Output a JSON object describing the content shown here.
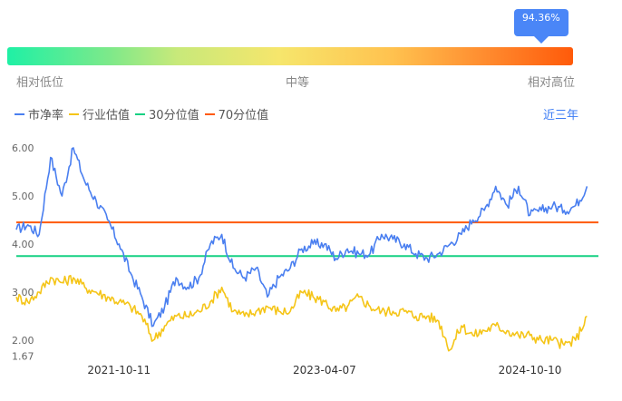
{
  "indicator": {
    "tooltip": "94.36%",
    "percentile": 0.9436,
    "labels": {
      "low": "相对低位",
      "mid": "中等",
      "high": "相对高位"
    }
  },
  "legend": [
    {
      "name": "市净率",
      "color": "#4a7ff0"
    },
    {
      "name": "行业估值",
      "color": "#f5c518"
    },
    {
      "name": "30分位值",
      "color": "#16d183"
    },
    {
      "name": "70分位值",
      "color": "#ff5a0a"
    }
  ],
  "period": "近三年",
  "chart_data": {
    "type": "line",
    "y_ticks": [
      "6.00",
      "5.00",
      "4.00",
      "3.00",
      "2.00",
      "1.67"
    ],
    "x_ticks": [
      "2021-10-11",
      "2023-04-07",
      "2024-10-10"
    ],
    "ylim": [
      1.67,
      6.2
    ],
    "x_range": [
      "2021-01",
      "2025-07"
    ],
    "series": [
      {
        "name": "市净率",
        "color": "#4a7ff0",
        "points": [
          [
            "2021-01",
            4.3
          ],
          [
            "2021-02",
            4.4
          ],
          [
            "2021-03",
            4.2
          ],
          [
            "2021-04",
            5.8
          ],
          [
            "2021-05",
            5.0
          ],
          [
            "2021-06",
            6.0
          ],
          [
            "2021-07",
            5.3
          ],
          [
            "2021-08",
            4.9
          ],
          [
            "2021-09",
            4.5
          ],
          [
            "2021-10",
            4.0
          ],
          [
            "2021-11",
            3.4
          ],
          [
            "2021-12",
            2.9
          ],
          [
            "2022-01",
            2.3
          ],
          [
            "2022-02",
            2.7
          ],
          [
            "2022-03",
            3.3
          ],
          [
            "2022-04",
            3.1
          ],
          [
            "2022-05",
            3.3
          ],
          [
            "2022-06",
            4.0
          ],
          [
            "2022-07",
            4.2
          ],
          [
            "2022-08",
            3.5
          ],
          [
            "2022-09",
            3.3
          ],
          [
            "2022-10",
            3.5
          ],
          [
            "2022-11",
            2.9
          ],
          [
            "2022-12",
            3.3
          ],
          [
            "2023-01",
            3.5
          ],
          [
            "2023-02",
            3.9
          ],
          [
            "2023-03",
            4.0
          ],
          [
            "2023-04",
            4.0
          ],
          [
            "2023-05",
            3.7
          ],
          [
            "2023-06",
            3.9
          ],
          [
            "2023-07",
            3.8
          ],
          [
            "2023-08",
            3.8
          ],
          [
            "2023-09",
            4.2
          ],
          [
            "2023-10",
            4.1
          ],
          [
            "2023-11",
            4.0
          ],
          [
            "2023-12",
            3.8
          ],
          [
            "2024-01",
            3.7
          ],
          [
            "2024-02",
            3.8
          ],
          [
            "2024-03",
            4.0
          ],
          [
            "2024-04",
            4.2
          ],
          [
            "2024-05",
            4.5
          ],
          [
            "2024-06",
            4.7
          ],
          [
            "2024-07",
            5.2
          ],
          [
            "2024-08",
            4.8
          ],
          [
            "2024-09",
            5.2
          ],
          [
            "2024-10",
            4.6
          ],
          [
            "2024-11",
            4.7
          ],
          [
            "2024-12",
            4.8
          ],
          [
            "2025-01",
            4.7
          ],
          [
            "2025-02",
            4.8
          ],
          [
            "2025-03",
            5.2
          ]
        ]
      },
      {
        "name": "行业估值",
        "color": "#f5c518",
        "points": [
          [
            "2021-01",
            2.9
          ],
          [
            "2021-02",
            2.8
          ],
          [
            "2021-03",
            3.0
          ],
          [
            "2021-04",
            3.3
          ],
          [
            "2021-05",
            3.2
          ],
          [
            "2021-06",
            3.3
          ],
          [
            "2021-07",
            3.1
          ],
          [
            "2021-08",
            3.0
          ],
          [
            "2021-09",
            2.9
          ],
          [
            "2021-10",
            2.8
          ],
          [
            "2021-11",
            2.7
          ],
          [
            "2021-12",
            2.5
          ],
          [
            "2022-01",
            2.0
          ],
          [
            "2022-02",
            2.3
          ],
          [
            "2022-03",
            2.5
          ],
          [
            "2022-04",
            2.5
          ],
          [
            "2022-05",
            2.6
          ],
          [
            "2022-06",
            2.8
          ],
          [
            "2022-07",
            3.1
          ],
          [
            "2022-08",
            2.6
          ],
          [
            "2022-09",
            2.5
          ],
          [
            "2022-10",
            2.6
          ],
          [
            "2022-11",
            2.7
          ],
          [
            "2022-12",
            2.6
          ],
          [
            "2023-01",
            2.6
          ],
          [
            "2023-02",
            3.0
          ],
          [
            "2023-03",
            2.9
          ],
          [
            "2023-04",
            2.8
          ],
          [
            "2023-05",
            2.6
          ],
          [
            "2023-06",
            2.7
          ],
          [
            "2023-07",
            2.9
          ],
          [
            "2023-08",
            2.7
          ],
          [
            "2023-09",
            2.6
          ],
          [
            "2023-10",
            2.6
          ],
          [
            "2023-11",
            2.6
          ],
          [
            "2023-12",
            2.5
          ],
          [
            "2024-01",
            2.5
          ],
          [
            "2024-02",
            2.4
          ],
          [
            "2024-03",
            1.8
          ],
          [
            "2024-04",
            2.3
          ],
          [
            "2024-05",
            2.1
          ],
          [
            "2024-06",
            2.2
          ],
          [
            "2024-07",
            2.3
          ],
          [
            "2024-08",
            2.2
          ],
          [
            "2024-09",
            2.1
          ],
          [
            "2024-10",
            2.1
          ],
          [
            "2024-11",
            2.0
          ],
          [
            "2024-12",
            2.0
          ],
          [
            "2025-01",
            1.9
          ],
          [
            "2025-02",
            2.0
          ],
          [
            "2025-03",
            2.5
          ]
        ]
      }
    ],
    "reference_lines": [
      {
        "name": "30分位值",
        "value": 3.75,
        "color": "#16d183"
      },
      {
        "name": "70分位值",
        "value": 4.45,
        "color": "#ff5a0a"
      }
    ]
  }
}
